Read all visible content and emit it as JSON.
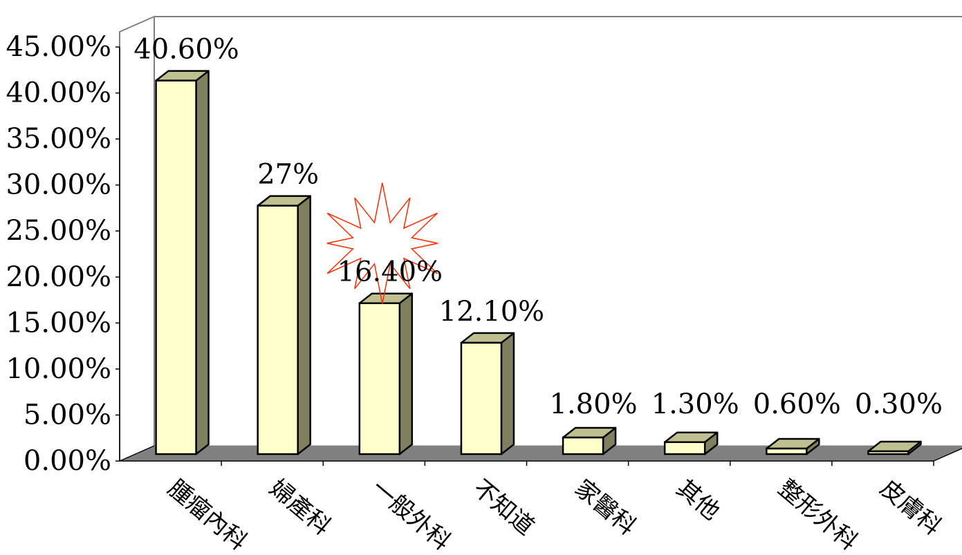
{
  "chart_data": {
    "type": "bar",
    "title": "",
    "xlabel": "",
    "ylabel": "",
    "ylim": [
      0,
      45
    ],
    "y_ticks": [
      "0.00%",
      "5.00%",
      "10.00%",
      "15.00%",
      "20.00%",
      "25.00%",
      "30.00%",
      "35.00%",
      "40.00%",
      "45.00%"
    ],
    "categories": [
      "腫瘤內科",
      "婦產科",
      "一般外科",
      "不知道",
      "家醫科",
      "其他",
      "整形外科",
      "皮膚科"
    ],
    "values": [
      40.6,
      27,
      16.4,
      12.1,
      1.8,
      1.3,
      0.6,
      0.3
    ],
    "data_labels": [
      "40.60%",
      "27%",
      "16.40%",
      "12.10%",
      "1.80%",
      "1.30%",
      "0.60%",
      "0.30%"
    ],
    "highlight_category": "一般外科",
    "grid": false,
    "colors": {
      "bar_front": "#ffffcc",
      "bar_top": "#bfbf8f",
      "bar_side": "#80805f",
      "floor": "#808080",
      "highlight_burst": "#ff2a00"
    }
  }
}
